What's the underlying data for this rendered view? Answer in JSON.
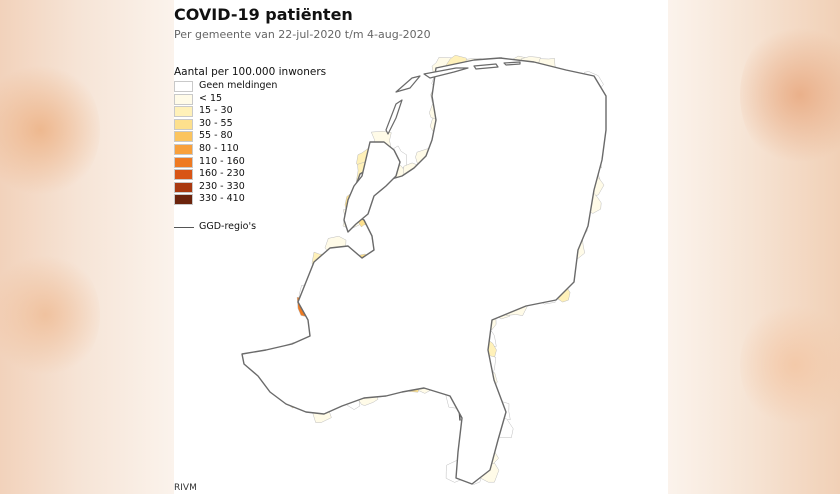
{
  "title": "COVID-19 patiënten",
  "subtitle": "Per gemeente van 22-jul-2020 t/m 4-aug-2020",
  "legend": {
    "title": "Aantal per 100.000 inwoners",
    "items": [
      {
        "label": "Geen meldingen",
        "color": "#ffffff"
      },
      {
        "label": "< 15",
        "color": "#fffbe8"
      },
      {
        "label": "15 - 30",
        "color": "#fff1b9"
      },
      {
        "label": "30 - 55",
        "color": "#fde08d"
      },
      {
        "label": "55 - 80",
        "color": "#fbc45e"
      },
      {
        "label": "80 - 110",
        "color": "#f8a03b"
      },
      {
        "label": "110 - 160",
        "color": "#ee7a22"
      },
      {
        "label": "160 - 230",
        "color": "#d85516"
      },
      {
        "label": "230 - 330",
        "color": "#a93910"
      },
      {
        "label": "330 - 410",
        "color": "#6b230c"
      }
    ],
    "region_label": "GGD-regio's"
  },
  "source": "RIVM",
  "colors": {
    "region_border": "#555555",
    "municipality_border": "#bdbdbd",
    "background": "#ffffff"
  }
}
